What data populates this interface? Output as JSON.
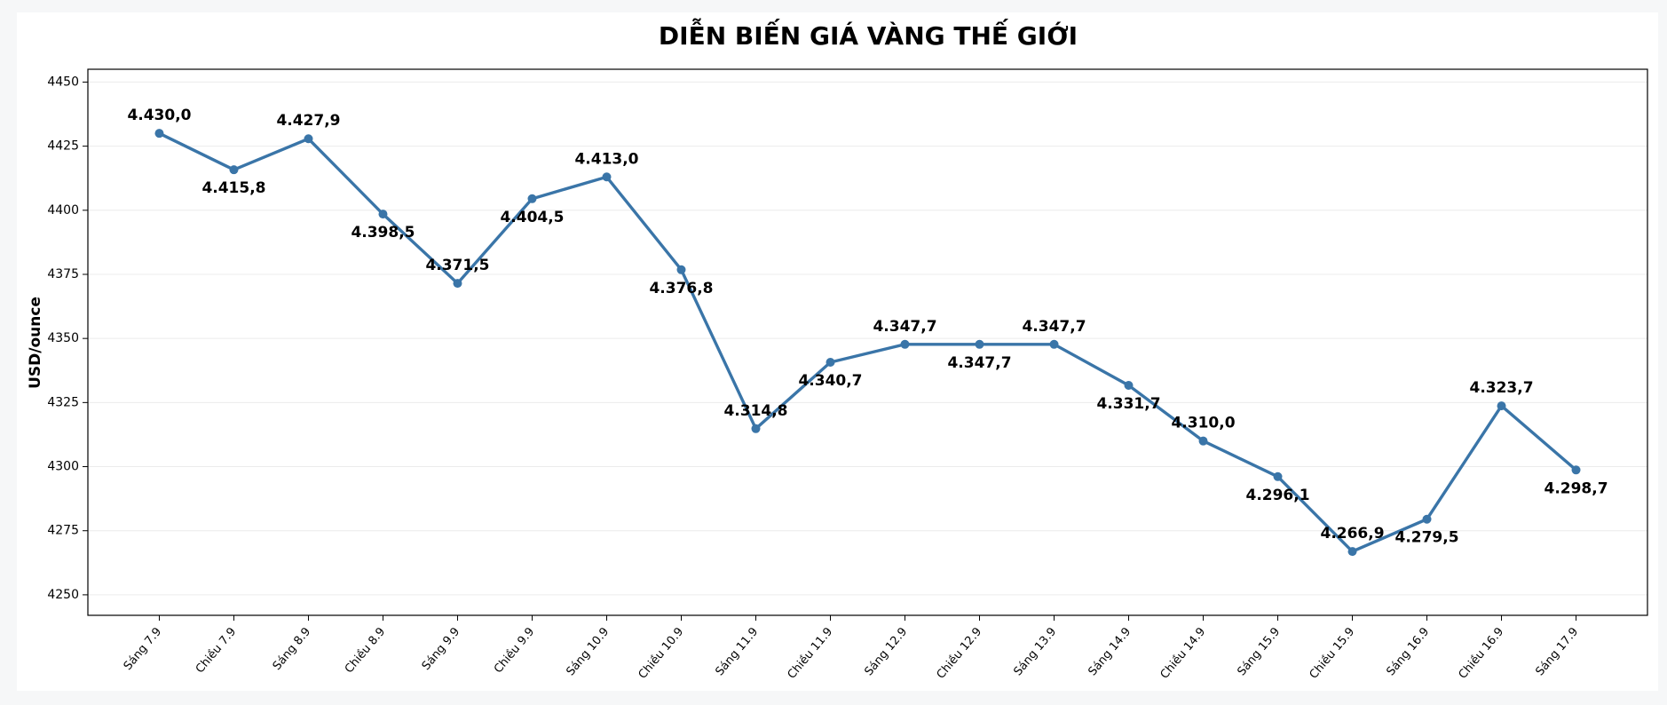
{
  "chart_data": {
    "type": "line",
    "title": "DIỄN BIẾN GIÁ VÀNG THẾ GIỚI",
    "y_label": "USD/ounce",
    "categories": [
      "Sáng 7.9",
      "Chiều 7.9",
      "Sáng 8.9",
      "Chiều 8.9",
      "Sáng 9.9",
      "Chiều 9.9",
      "Sáng 10.9",
      "Chiều 10.9",
      "Sáng 11.9",
      "Chiều 11.9",
      "Sáng 12.9",
      "Chiều 12.9",
      "Sáng 13.9",
      "Sáng 14.9",
      "Chiều 14.9",
      "Sáng 15.9",
      "Chiều 15.9",
      "Sáng 16.9",
      "Chiều 16.9",
      "Sáng 17.9"
    ],
    "values": [
      4430.0,
      4415.8,
      4427.9,
      4398.5,
      4371.5,
      4404.5,
      4413.0,
      4376.8,
      4314.8,
      4340.7,
      4347.7,
      4347.7,
      4347.7,
      4331.7,
      4310.0,
      4296.1,
      4266.9,
      4279.5,
      4323.7,
      4298.7
    ],
    "value_labels": [
      "4.430,0",
      "4.415,8",
      "4.427,9",
      "4.398,5",
      "4.371,5",
      "4.404,5",
      "4.413,0",
      "4.376,8",
      "4.314,8",
      "4.340,7",
      "4.347,7",
      "4.347,7",
      "4.347,7",
      "4.331,7",
      "4.310,0",
      "4.296,1",
      "4.266,9",
      "4.279,5",
      "4.323,7",
      "4.298,7"
    ],
    "color": "#3a75a8",
    "ylim": [
      4242,
      4455
    ],
    "yticks": [
      4250,
      4275,
      4300,
      4325,
      4350,
      4375,
      4400,
      4425,
      4450
    ],
    "grid": true
  }
}
